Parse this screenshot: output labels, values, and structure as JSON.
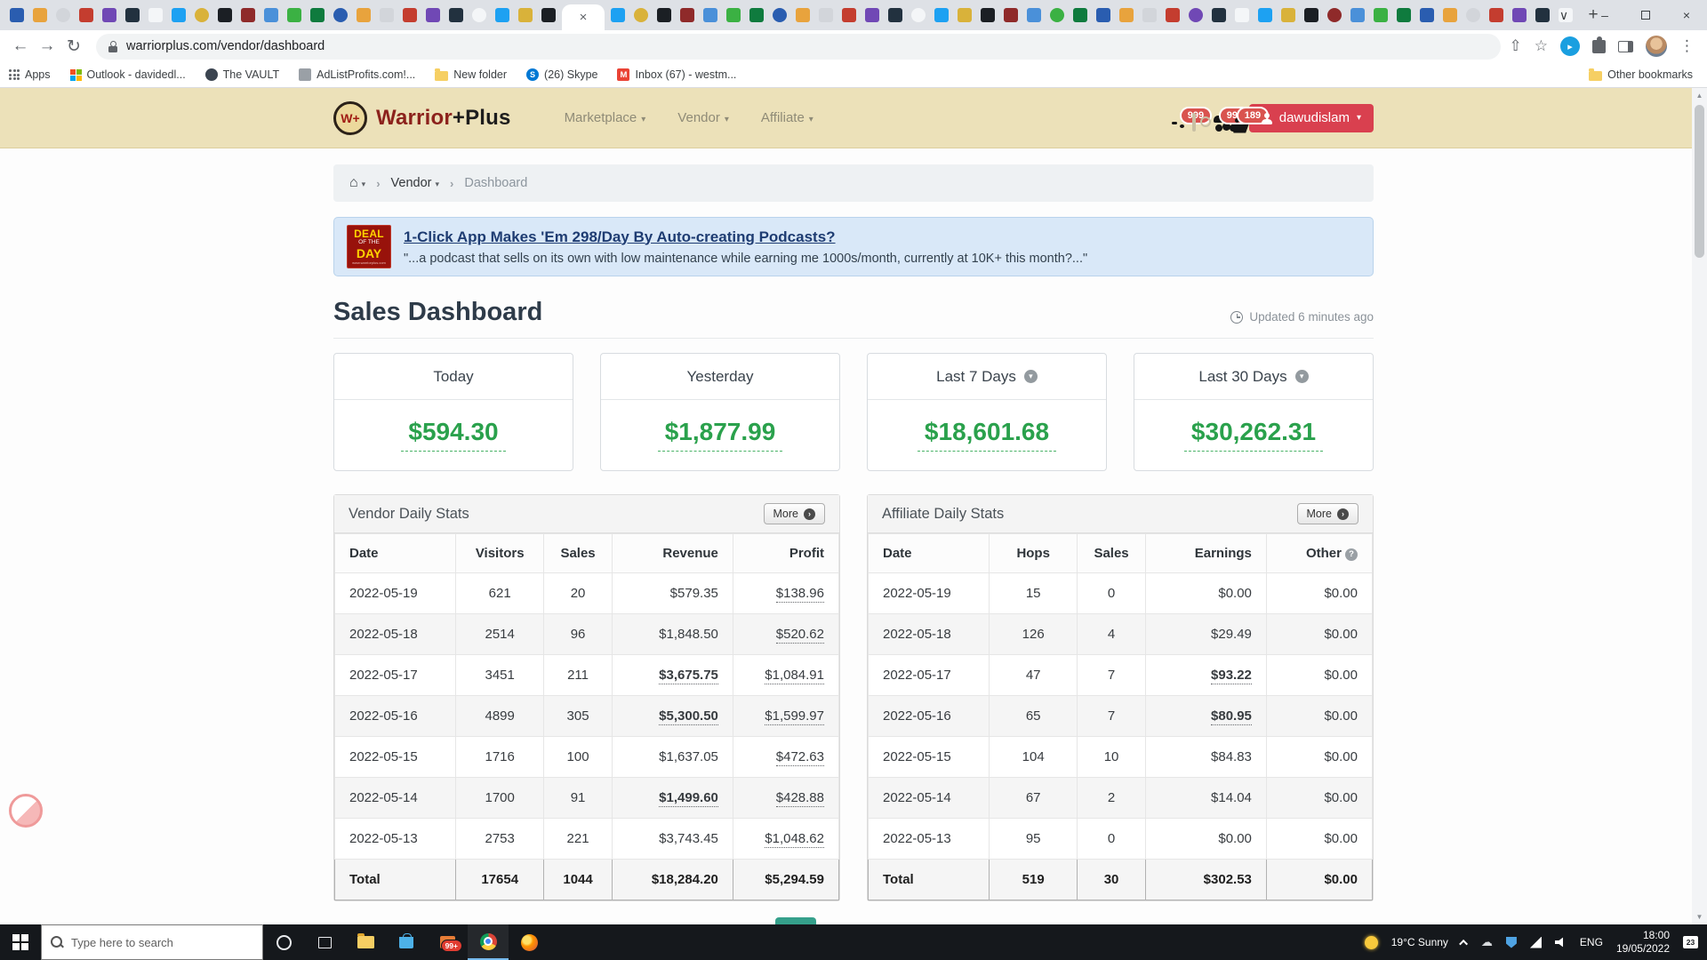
{
  "browser": {
    "tabs": {
      "pinned_before": 24,
      "pinned_after": 42,
      "favicon_palette": [
        "#2a5db0",
        "#c43d2f",
        "#f4f6f8",
        "#1b1f24",
        "#3bb143",
        "#e8a33d",
        "#7048b5",
        "#1da1f2",
        "#8f2a2a",
        "#0f7b3e",
        "#d2d5da",
        "#22313f",
        "#d9b23a",
        "#4a90d9"
      ],
      "close_glyph": "×",
      "new_tab_glyph": "+"
    },
    "window_controls": {
      "search": "∨",
      "minimize": "–",
      "close": "×"
    },
    "toolbar": {
      "back": "←",
      "forward": "→",
      "reload": "↻",
      "url": "warriorplus.com/vendor/dashboard",
      "menu": "⋮",
      "share": "⇧",
      "star": "☆"
    },
    "bookmarks_bar": {
      "apps_label": "Apps",
      "items": [
        {
          "label": "Outlook - davidedl...",
          "icon": "ms"
        },
        {
          "label": "The VAULT",
          "icon": "globe"
        },
        {
          "label": "AdListProfits.com!...",
          "icon": "page"
        },
        {
          "label": "New folder",
          "icon": "folder"
        },
        {
          "label": "(26) Skype",
          "icon": "skype"
        },
        {
          "label": "Inbox (67) - westm...",
          "icon": "gmail"
        }
      ],
      "other_label": "Other bookmarks"
    }
  },
  "site_header": {
    "logo_monogram": "W+",
    "brand_first": "Warrior",
    "brand_second": "+Plus",
    "nav": [
      {
        "label": "Marketplace"
      },
      {
        "label": "Vendor"
      },
      {
        "label": "Affiliate"
      }
    ],
    "alerts_badge": "999",
    "members_badge": "999",
    "cart_badge": "189",
    "username": "dawudislam"
  },
  "breadcrumb": {
    "level1": "Vendor",
    "level2": "Dashboard"
  },
  "deal": {
    "ribbon": [
      "DEAL",
      "OF THE",
      "DAY"
    ],
    "ribbon_url": "www.warriorplus.com",
    "title": "1-Click App Makes 'Em 298/Day By Auto-creating Podcasts?",
    "quote": "\"...a podcast that sells on its own with low maintenance while earning me 1000s/month, currently at 10K+ this month?...\""
  },
  "dashboard": {
    "title": "Sales Dashboard",
    "updated": "Updated 6 minutes ago",
    "cards": [
      {
        "label": "Today",
        "value": "$594.30",
        "menu": false
      },
      {
        "label": "Yesterday",
        "value": "$1,877.99",
        "menu": false
      },
      {
        "label": "Last 7 Days",
        "value": "$18,601.68",
        "menu": true
      },
      {
        "label": "Last 30 Days",
        "value": "$30,262.31",
        "menu": true
      }
    ],
    "vendor_table": {
      "title": "Vendor Daily Stats",
      "more_label": "More",
      "columns": [
        "Date",
        "Visitors",
        "Sales",
        "Revenue",
        "Profit"
      ],
      "help_last": false,
      "rows": [
        {
          "cells": [
            {
              "t": "2022-05-19"
            },
            {
              "t": "621"
            },
            {
              "t": "20"
            },
            {
              "t": "$579.35"
            },
            {
              "t": "$138.96",
              "s": "u"
            }
          ]
        },
        {
          "cells": [
            {
              "t": "2022-05-18"
            },
            {
              "t": "2514"
            },
            {
              "t": "96"
            },
            {
              "t": "$1,848.50"
            },
            {
              "t": "$520.62",
              "s": "u"
            }
          ]
        },
        {
          "cells": [
            {
              "t": "2022-05-17"
            },
            {
              "t": "3451"
            },
            {
              "t": "211"
            },
            {
              "t": "$3,675.75",
              "s": "b u"
            },
            {
              "t": "$1,084.91",
              "s": "u"
            }
          ]
        },
        {
          "cells": [
            {
              "t": "2022-05-16"
            },
            {
              "t": "4899"
            },
            {
              "t": "305"
            },
            {
              "t": "$5,300.50",
              "s": "b u"
            },
            {
              "t": "$1,599.97",
              "s": "u"
            }
          ]
        },
        {
          "cells": [
            {
              "t": "2022-05-15"
            },
            {
              "t": "1716"
            },
            {
              "t": "100"
            },
            {
              "t": "$1,637.05"
            },
            {
              "t": "$472.63",
              "s": "u"
            }
          ]
        },
        {
          "cells": [
            {
              "t": "2022-05-14"
            },
            {
              "t": "1700"
            },
            {
              "t": "91"
            },
            {
              "t": "$1,499.60",
              "s": "b u"
            },
            {
              "t": "$428.88",
              "s": "u"
            }
          ]
        },
        {
          "cells": [
            {
              "t": "2022-05-13"
            },
            {
              "t": "2753"
            },
            {
              "t": "221"
            },
            {
              "t": "$3,743.45"
            },
            {
              "t": "$1,048.62",
              "s": "u"
            }
          ]
        },
        {
          "total": true,
          "cells": [
            {
              "t": "Total"
            },
            {
              "t": "17654"
            },
            {
              "t": "1044"
            },
            {
              "t": "$18,284.20"
            },
            {
              "t": "$5,294.59"
            }
          ]
        }
      ]
    },
    "affiliate_table": {
      "title": "Affiliate Daily Stats",
      "more_label": "More",
      "columns": [
        "Date",
        "Hops",
        "Sales",
        "Earnings",
        "Other"
      ],
      "help_last": true,
      "rows": [
        {
          "cells": [
            {
              "t": "2022-05-19"
            },
            {
              "t": "15"
            },
            {
              "t": "0"
            },
            {
              "t": "$0.00"
            },
            {
              "t": "$0.00"
            }
          ]
        },
        {
          "cells": [
            {
              "t": "2022-05-18"
            },
            {
              "t": "126"
            },
            {
              "t": "4"
            },
            {
              "t": "$29.49"
            },
            {
              "t": "$0.00"
            }
          ]
        },
        {
          "cells": [
            {
              "t": "2022-05-17"
            },
            {
              "t": "47"
            },
            {
              "t": "7"
            },
            {
              "t": "$93.22",
              "s": "b u"
            },
            {
              "t": "$0.00"
            }
          ]
        },
        {
          "cells": [
            {
              "t": "2022-05-16"
            },
            {
              "t": "65"
            },
            {
              "t": "7"
            },
            {
              "t": "$80.95",
              "s": "b u"
            },
            {
              "t": "$0.00"
            }
          ]
        },
        {
          "cells": [
            {
              "t": "2022-05-15"
            },
            {
              "t": "104"
            },
            {
              "t": "10"
            },
            {
              "t": "$84.83"
            },
            {
              "t": "$0.00"
            }
          ]
        },
        {
          "cells": [
            {
              "t": "2022-05-14"
            },
            {
              "t": "67"
            },
            {
              "t": "2"
            },
            {
              "t": "$14.04"
            },
            {
              "t": "$0.00"
            }
          ]
        },
        {
          "cells": [
            {
              "t": "2022-05-13"
            },
            {
              "t": "95"
            },
            {
              "t": "0"
            },
            {
              "t": "$0.00"
            },
            {
              "t": "$0.00"
            }
          ]
        },
        {
          "total": true,
          "cells": [
            {
              "t": "Total"
            },
            {
              "t": "519"
            },
            {
              "t": "30"
            },
            {
              "t": "$302.53"
            },
            {
              "t": "$0.00"
            }
          ]
        }
      ]
    }
  },
  "taskbar": {
    "search_placeholder": "Type here to search",
    "mail_badge": "99+",
    "weather": "19°C Sunny",
    "lang": "ENG",
    "time": "18:00",
    "date": "19/05/2022",
    "notif_count": "23"
  }
}
